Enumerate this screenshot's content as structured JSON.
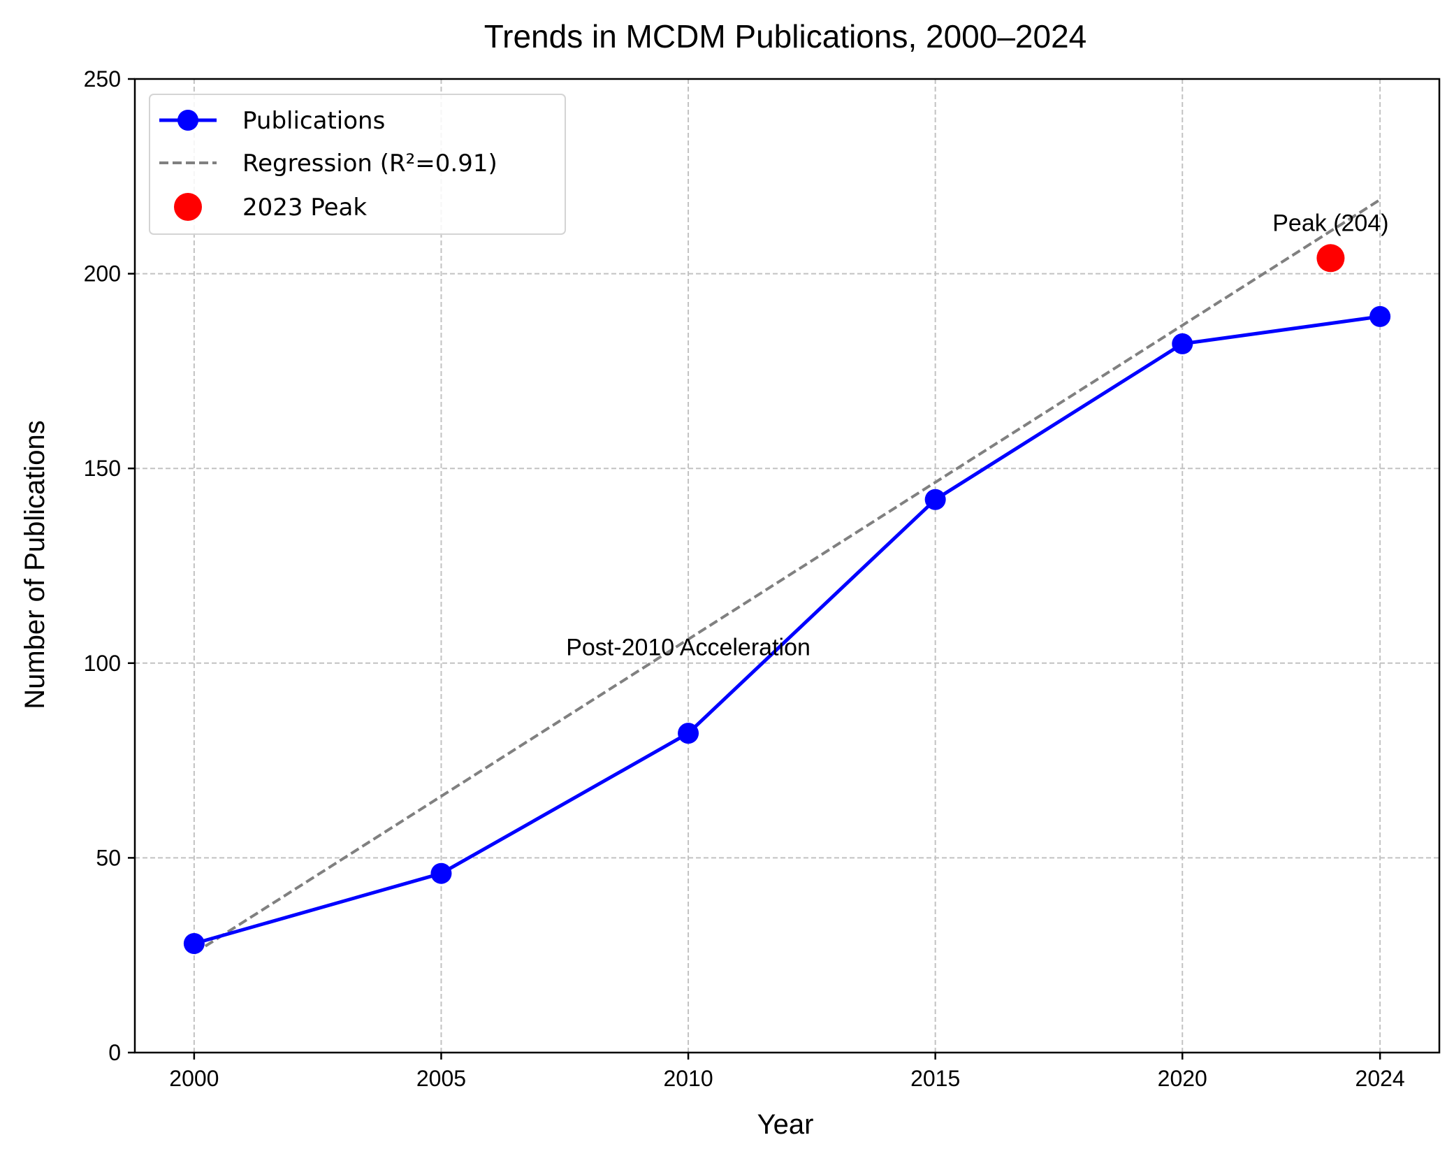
{
  "chart_data": {
    "type": "line",
    "title": "Trends in MCDM Publications, 2000–2024",
    "xlabel": "Year",
    "ylabel": "Number of Publications",
    "xlim": [
      1998.8,
      2025.2
    ],
    "ylim": [
      0,
      250
    ],
    "x_ticks": [
      2000,
      2005,
      2010,
      2015,
      2020,
      2024
    ],
    "y_ticks": [
      0,
      50,
      100,
      150,
      200,
      250
    ],
    "grid": true,
    "grid_style": "dashed",
    "legend_position": "upper-left",
    "series": [
      {
        "name": "Publications",
        "style": "solid line with circle markers",
        "color": "#0000ff",
        "x": [
          2000,
          2005,
          2010,
          2015,
          2020,
          2024
        ],
        "y": [
          28,
          46,
          82,
          142,
          182,
          189
        ]
      },
      {
        "name": "Regression (R²=0.91)",
        "style": "dashed line",
        "color": "#808080",
        "x": [
          2000,
          2024
        ],
        "y": [
          25.5,
          219
        ]
      },
      {
        "name": "2023 Peak",
        "style": "scatter",
        "color": "#ff0000",
        "x": [
          2023
        ],
        "y": [
          204
        ]
      }
    ],
    "annotations": [
      {
        "text": "Post-2010 Acceleration",
        "x": 2010,
        "y": 102
      },
      {
        "text": "Peak (204)",
        "x": 2023,
        "y": 211
      }
    ]
  },
  "colors": {
    "axis": "#000000",
    "grid": "#c2c2c2",
    "legend_border": "#d4d4d4"
  }
}
